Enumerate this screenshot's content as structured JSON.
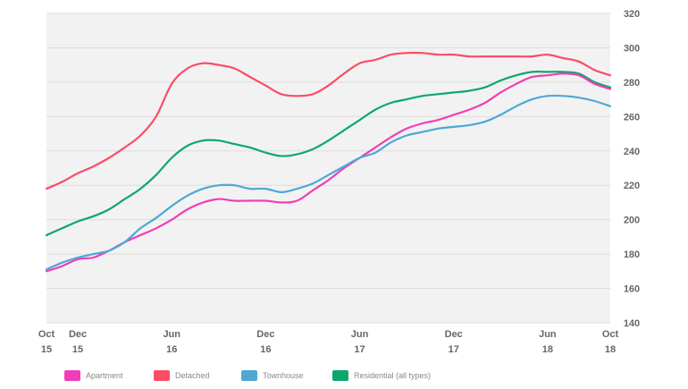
{
  "chart_data": {
    "type": "line",
    "title": "",
    "xlabel": "",
    "ylabel": "",
    "ylim": [
      140,
      320
    ],
    "yticks": [
      140,
      160,
      180,
      200,
      220,
      240,
      260,
      280,
      300,
      320
    ],
    "y_axis_side": "right",
    "grid": true,
    "legend_position": "bottom",
    "x_ticks": [
      {
        "x": 0,
        "month": "Oct",
        "year": "15"
      },
      {
        "x": 2,
        "month": "Dec",
        "year": "15"
      },
      {
        "x": 8,
        "month": "Jun",
        "year": "16"
      },
      {
        "x": 14,
        "month": "Dec",
        "year": "16"
      },
      {
        "x": 20,
        "month": "Jun",
        "year": "17"
      },
      {
        "x": 26,
        "month": "Dec",
        "year": "17"
      },
      {
        "x": 32,
        "month": "Jun",
        "year": "18"
      },
      {
        "x": 36,
        "month": "Oct",
        "year": "18"
      }
    ],
    "x": [
      0,
      1,
      2,
      3,
      4,
      5,
      6,
      7,
      8,
      9,
      10,
      11,
      12,
      13,
      14,
      15,
      16,
      17,
      18,
      19,
      20,
      21,
      22,
      23,
      24,
      25,
      26,
      27,
      28,
      29,
      30,
      31,
      32,
      33,
      34,
      35,
      36
    ],
    "series": [
      {
        "name": "Apartment",
        "color": "#f03eb6",
        "values": [
          170,
          173,
          177,
          178,
          182,
          187,
          191,
          195,
          200,
          206,
          210,
          212,
          211,
          211,
          211,
          210,
          211,
          217,
          223,
          230,
          236,
          242,
          248,
          253,
          256,
          258,
          261,
          264,
          268,
          274,
          279,
          283,
          284,
          285,
          284,
          279,
          276
        ]
      },
      {
        "name": "Detached",
        "color": "#fa4d66",
        "values": [
          218,
          222,
          227,
          231,
          236,
          242,
          249,
          260,
          279,
          288,
          291,
          290,
          288,
          283,
          278,
          273,
          272,
          273,
          278,
          285,
          291,
          293,
          296,
          297,
          297,
          296,
          296,
          295,
          295,
          295,
          295,
          295,
          296,
          294,
          292,
          287,
          284
        ]
      },
      {
        "name": "Townhouse",
        "color": "#4da8d4",
        "values": [
          171,
          175,
          178,
          180,
          182,
          187,
          195,
          201,
          208,
          214,
          218,
          220,
          220,
          218,
          218,
          216,
          218,
          221,
          226,
          231,
          236,
          239,
          245,
          249,
          251,
          253,
          254,
          255,
          257,
          261,
          266,
          270,
          272,
          272,
          271,
          269,
          266
        ]
      },
      {
        "name": "Residential (all types)",
        "color": "#0ca86a",
        "values": [
          191,
          195,
          199,
          202,
          206,
          212,
          218,
          226,
          236,
          243,
          246,
          246,
          244,
          242,
          239,
          237,
          238,
          241,
          246,
          252,
          258,
          264,
          268,
          270,
          272,
          273,
          274,
          275,
          277,
          281,
          284,
          286,
          286,
          286,
          285,
          280,
          277
        ]
      }
    ]
  }
}
